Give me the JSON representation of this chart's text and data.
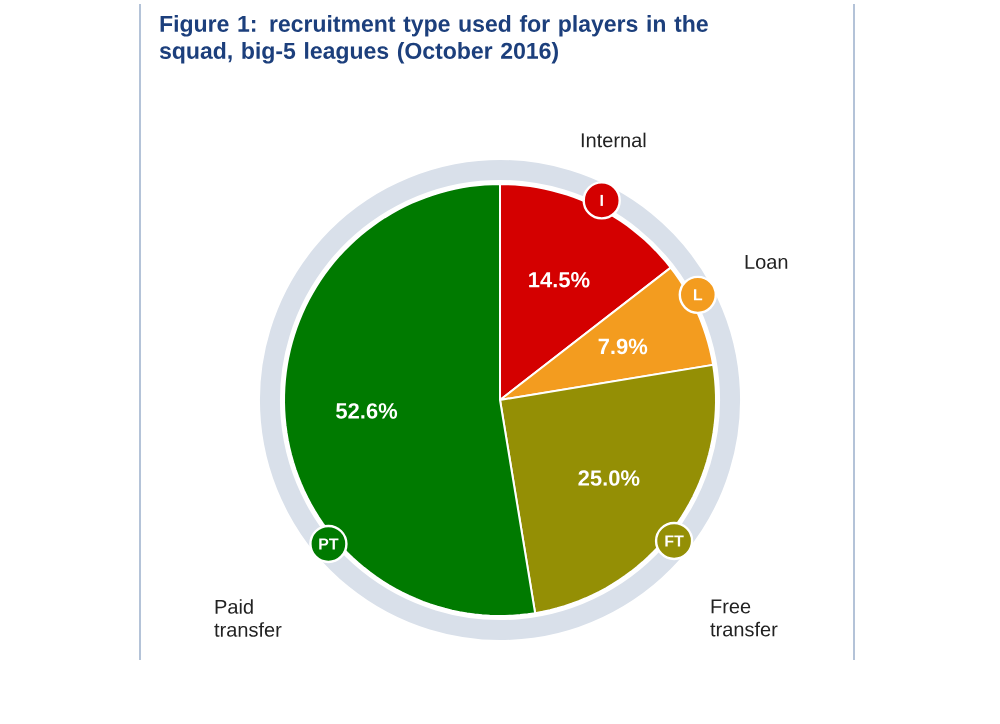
{
  "chart_data": {
    "type": "pie",
    "title": "Figure 1: recruitment type used for players in the squad, big-5 leagues (October 2016)",
    "categories": [
      "Internal",
      "Loan",
      "Free transfer",
      "Paid transfer"
    ],
    "values": [
      14.5,
      7.9,
      25.0,
      52.6
    ],
    "value_labels": [
      "14.5%",
      "7.9%",
      "25.0%",
      "52.6%"
    ],
    "colors": [
      "#d40000",
      "#f39c1f",
      "#948f05",
      "#007a00"
    ],
    "annotations": [
      "I",
      "L",
      "FT",
      "PT"
    ]
  }
}
